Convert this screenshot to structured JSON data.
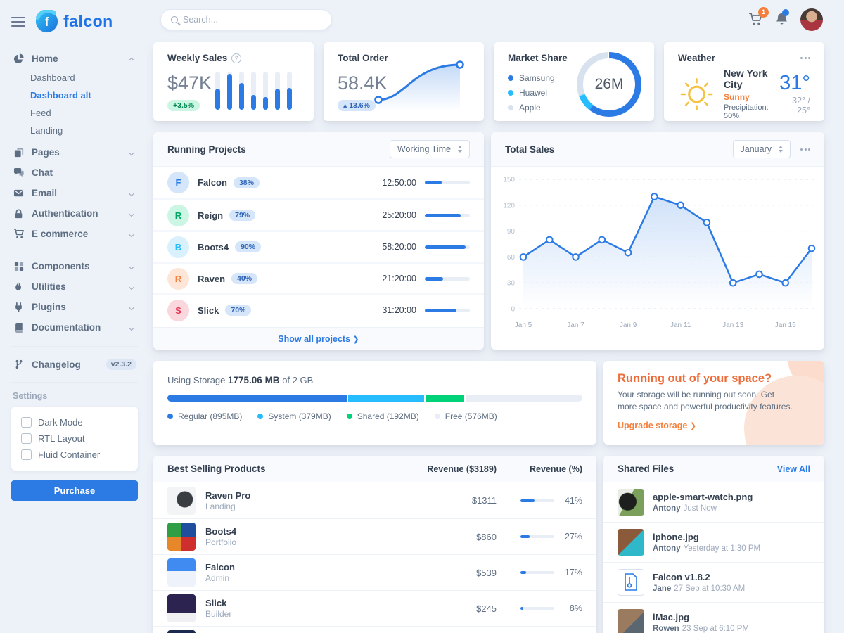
{
  "colors": {
    "primary": "#2c7be5",
    "info": "#27bcfd",
    "success": "#00d27a",
    "warning": "#f5803e",
    "danger": "#e63757"
  },
  "topbar": {
    "search_placeholder": "Search...",
    "cart_badge": "1"
  },
  "sidebar": {
    "logo_text": "falcon",
    "nav": [
      {
        "label": "Home"
      },
      {
        "label": "Pages"
      },
      {
        "label": "Chat"
      },
      {
        "label": "Email"
      },
      {
        "label": "Authentication"
      },
      {
        "label": "E commerce"
      },
      {
        "label": "Components"
      },
      {
        "label": "Utilities"
      },
      {
        "label": "Plugins"
      },
      {
        "label": "Documentation"
      }
    ],
    "home_children": [
      {
        "label": "Dashboard"
      },
      {
        "label": "Dashboard alt"
      },
      {
        "label": "Feed"
      },
      {
        "label": "Landing"
      }
    ],
    "changelog": {
      "label": "Changelog",
      "version": "v2.3.2"
    },
    "settings": {
      "heading": "Settings",
      "options": [
        {
          "label": "Dark Mode"
        },
        {
          "label": "RTL Layout"
        },
        {
          "label": "Fluid Container"
        }
      ]
    },
    "purchase_label": "Purchase"
  },
  "cards": {
    "weekly_sales": {
      "title": "Weekly Sales",
      "value": "$47K",
      "change": "+3.5%",
      "bars": [
        55,
        95,
        70,
        38,
        33,
        55,
        58
      ]
    },
    "total_order": {
      "title": "Total Order",
      "value": "58.4K",
      "change": "13.6%"
    },
    "market_share": {
      "title": "Market Share",
      "value": "26M",
      "legend": [
        {
          "label": "Samsung",
          "color": "#2c7be5"
        },
        {
          "label": "Huawei",
          "color": "#27bcfd"
        },
        {
          "label": "Apple",
          "color": "#d8e2ef"
        }
      ],
      "segments": [
        {
          "color": "#2c7be5",
          "from": 2,
          "to": 216
        },
        {
          "color": "#27bcfd",
          "from": 219,
          "to": 247
        },
        {
          "color": "#d8e2ef",
          "from": 250,
          "to": 358
        }
      ]
    },
    "weather": {
      "title": "Weather",
      "city": "New York City",
      "condition": "Sunny",
      "precipitation": "Precipitation: 50%",
      "temperature": "31°",
      "range": "32° / 25°"
    }
  },
  "running_projects": {
    "title": "Running Projects",
    "filter": "Working Time",
    "rows": [
      {
        "initial": "F",
        "name": "Falcon",
        "badge": "38%",
        "time": "12:50:00",
        "progress": 38,
        "avatar_bg": "#d5e5fa",
        "avatar_color": "#2c7be5"
      },
      {
        "initial": "R",
        "name": "Reign",
        "badge": "79%",
        "time": "25:20:00",
        "progress": 79,
        "avatar_bg": "#ccf6e4",
        "avatar_color": "#00a865"
      },
      {
        "initial": "B",
        "name": "Boots4",
        "badge": "90%",
        "time": "58:20:00",
        "progress": 90,
        "avatar_bg": "#d9f1fd",
        "avatar_color": "#27bcfd"
      },
      {
        "initial": "R",
        "name": "Raven",
        "badge": "40%",
        "time": "21:20:00",
        "progress": 40,
        "avatar_bg": "#fde6d8",
        "avatar_color": "#f5803e"
      },
      {
        "initial": "S",
        "name": "Slick",
        "badge": "70%",
        "time": "31:20:00",
        "progress": 70,
        "avatar_bg": "#fad7dd",
        "avatar_color": "#e63757"
      }
    ],
    "footer_link": "Show all projects"
  },
  "total_sales": {
    "title": "Total Sales",
    "filter": "January",
    "chart_data": {
      "type": "line",
      "x": [
        "Jan 5",
        "Jan 6",
        "Jan 7",
        "Jan 8",
        "Jan 9",
        "Jan 10",
        "Jan 11",
        "Jan 12",
        "Jan 13",
        "Jan 14",
        "Jan 15",
        "Jan 16"
      ],
      "values": [
        60,
        80,
        60,
        80,
        65,
        130,
        120,
        100,
        30,
        40,
        30,
        70
      ],
      "x_tick_labels": [
        "Jan 5",
        "Jan 7",
        "Jan 9",
        "Jan 11",
        "Jan 13",
        "Jan 15"
      ],
      "y_ticks": [
        0,
        30,
        60,
        90,
        120,
        150
      ],
      "ylim": [
        0,
        150
      ],
      "line_color": "#2c7be5",
      "grid": "dashed"
    }
  },
  "storage": {
    "label_prefix": "Using Storage",
    "used": "1775.06 MB",
    "label_suffix": "of 2 GB",
    "segments": [
      {
        "label": "Regular (895MB)",
        "color": "#2c7be5",
        "pct": 43.7
      },
      {
        "label": "System (379MB)",
        "color": "#27bcfd",
        "pct": 18.5
      },
      {
        "label": "Shared (192MB)",
        "color": "#00d27a",
        "pct": 9.4
      },
      {
        "label": "Free (576MB)",
        "color": "#e9edf5",
        "pct": 28.4
      }
    ]
  },
  "space_promo": {
    "title": "Running out of your space?",
    "body": "Your storage will be running out soon. Get more space and powerful productivity features.",
    "link": "Upgrade storage"
  },
  "best_selling": {
    "title": "Best Selling Products",
    "revenue_header": "Revenue ($3189)",
    "percent_header": "Revenue (%)",
    "rows": [
      {
        "name": "Raven Pro",
        "category": "Landing",
        "revenue": "$1311",
        "pct": 41,
        "pct_label": "41%"
      },
      {
        "name": "Boots4",
        "category": "Portfolio",
        "revenue": "$860",
        "pct": 27,
        "pct_label": "27%"
      },
      {
        "name": "Falcon",
        "category": "Admin",
        "revenue": "$539",
        "pct": 17,
        "pct_label": "17%"
      },
      {
        "name": "Slick",
        "category": "Builder",
        "revenue": "$245",
        "pct": 8,
        "pct_label": "8%"
      }
    ]
  },
  "shared_files": {
    "title": "Shared Files",
    "view_all": "View All",
    "items": [
      {
        "name": "apple-smart-watch.png",
        "author": "Antony",
        "time": "Just Now"
      },
      {
        "name": "iphone.jpg",
        "author": "Antony",
        "time": "Yesterday at 1:30 PM"
      },
      {
        "name": "Falcon v1.8.2",
        "author": "Jane",
        "time": "27 Sep at 10:30 AM"
      },
      {
        "name": "iMac.jpg",
        "author": "Rowen",
        "time": "23 Sep at 6:10 PM"
      }
    ]
  }
}
